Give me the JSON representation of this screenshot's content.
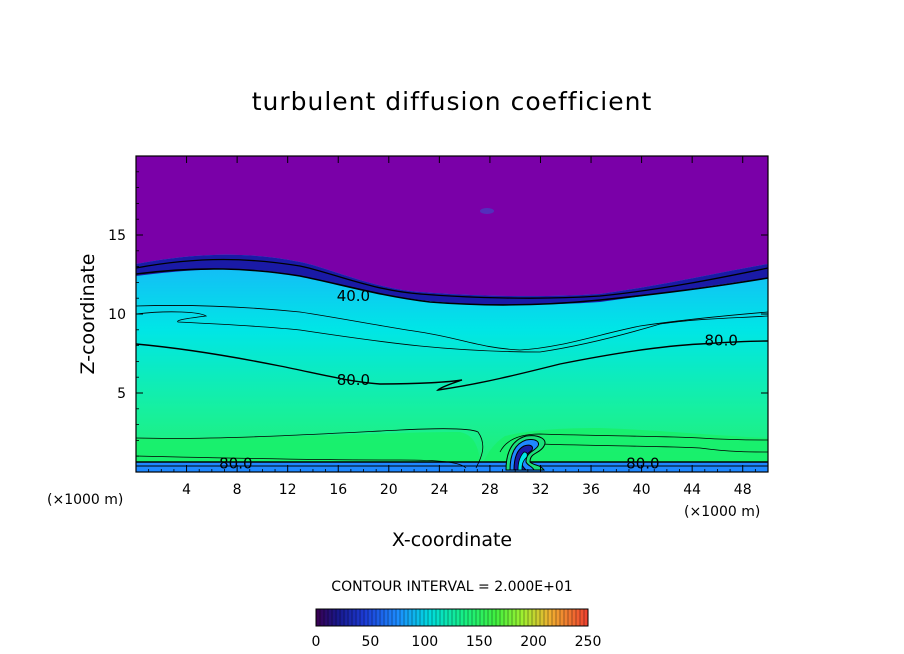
{
  "chart_data": {
    "type": "heatmap",
    "title": "turbulent diffusion coefficient",
    "xlabel": "X-coordinate",
    "ylabel": "Z-coordinate",
    "x_unit": "(×1000 m)",
    "z_unit": "(×1000 m)",
    "xlim": [
      0,
      50
    ],
    "ylim": [
      0,
      20
    ],
    "x_ticks": [
      4,
      8,
      12,
      16,
      20,
      24,
      28,
      32,
      36,
      40,
      44,
      48
    ],
    "y_ticks": [
      5,
      10,
      15
    ],
    "contour_interval_text": "CONTOUR INTERVAL = 2.000E+01",
    "contour_labels": [
      {
        "text": "40.0",
        "x": 17.2,
        "z": 11.1
      },
      {
        "text": "80.0",
        "x": 46.3,
        "z": 8.3
      },
      {
        "text": "80.0",
        "x": 17.2,
        "z": 5.8
      },
      {
        "text": "80.0",
        "x": 7.9,
        "z": 0.5
      },
      {
        "text": "80.0",
        "x": 40.1,
        "z": 0.5
      }
    ],
    "colorbar": {
      "min": 0,
      "max": 250,
      "tick_labels": [
        "0",
        "50",
        "100",
        "150",
        "200",
        "250"
      ],
      "tick_values": [
        0,
        50,
        100,
        150,
        200,
        250
      ]
    },
    "colors": {
      "upper_field": "#7a00a8",
      "band_dark_blue": "#1a1aa6",
      "mid_blue": "#1e88ff",
      "lower_cyan": "#00f0d8",
      "lower_green": "#19f06a"
    }
  }
}
